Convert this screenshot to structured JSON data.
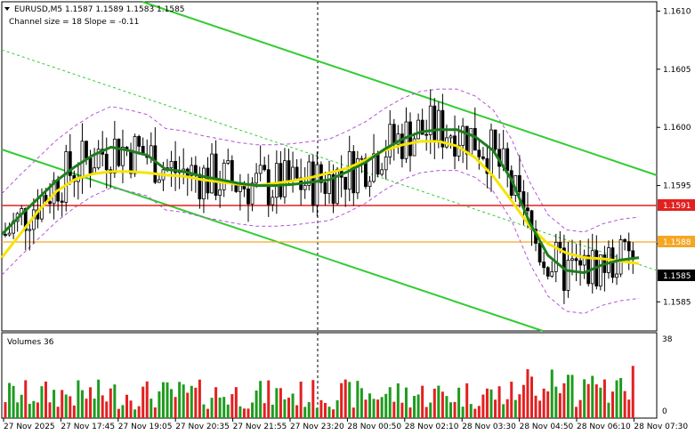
{
  "header": {
    "symbol_line": "EURUSD,M5  1.1587 1.1589 1.1583 1.1585",
    "channel_line": "Channel size = 18 Slope = -0.11"
  },
  "volume_panel": {
    "title": "Volumes 36",
    "axis_max": "38",
    "axis_min": "0"
  },
  "price_levels": {
    "resistance": "1.1591",
    "support": "1.1588",
    "current": "1.1585",
    "colors": {
      "resistance": "#e32020",
      "support": "#f5a623",
      "current": "#000000"
    }
  },
  "chart_data": {
    "type": "candlestick",
    "symbol": "EURUSD",
    "timeframe": "M5",
    "y_ticks": [
      "1.1610",
      "1.1605",
      "1.1600",
      "1.1595",
      "1.1590",
      "1.1585"
    ],
    "x_ticks": [
      "27 Nov 2025",
      "27 Nov 17:45",
      "27 Nov 19:05",
      "27 Nov 20:35",
      "27 Nov 21:55",
      "27 Nov 23:20",
      "28 Nov 00:50",
      "28 Nov 02:10",
      "28 Nov 03:30",
      "28 Nov 04:50",
      "28 Nov 06:10",
      "28 Nov 07:30"
    ],
    "ylim": [
      1.15825,
      1.16108
    ],
    "volume_ylim": [
      0,
      38
    ],
    "series_colors": {
      "candle": "#000000",
      "ma_fast": "#1e7d1e",
      "ma_slow": "#f5e400",
      "channel": "#33cc33",
      "envelope": "#b455d6",
      "vol_up": "#1e9c1e",
      "vol_down": "#e32020"
    },
    "ma_fast": [
      1.15908,
      1.15924,
      1.15939,
      1.15954,
      1.15966,
      1.15976,
      1.15983,
      1.1598,
      1.15976,
      1.15964,
      1.15962,
      1.15958,
      1.15955,
      1.15952,
      1.1595,
      1.1595,
      1.15951,
      1.15953,
      1.15955,
      1.15962,
      1.1597,
      1.15981,
      1.1599,
      1.15996,
      1.15998,
      1.15998,
      1.15992,
      1.1598,
      1.15955,
      1.15918,
      1.1589,
      1.15877,
      1.15875,
      1.15882,
      1.15886,
      1.15888
    ],
    "ma_slow": [
      1.15888,
      1.15908,
      1.15928,
      1.15945,
      1.15955,
      1.1596,
      1.15962,
      1.15962,
      1.15961,
      1.15959,
      1.15958,
      1.15955,
      1.15953,
      1.15951,
      1.1595,
      1.15952,
      1.15954,
      1.15957,
      1.15961,
      1.15965,
      1.15972,
      1.1598,
      1.15985,
      1.15988,
      1.15988,
      1.15984,
      1.15974,
      1.15958,
      1.15937,
      1.15915,
      1.159,
      1.15892,
      1.15888,
      1.15887,
      1.15885,
      1.15883
    ]
  }
}
